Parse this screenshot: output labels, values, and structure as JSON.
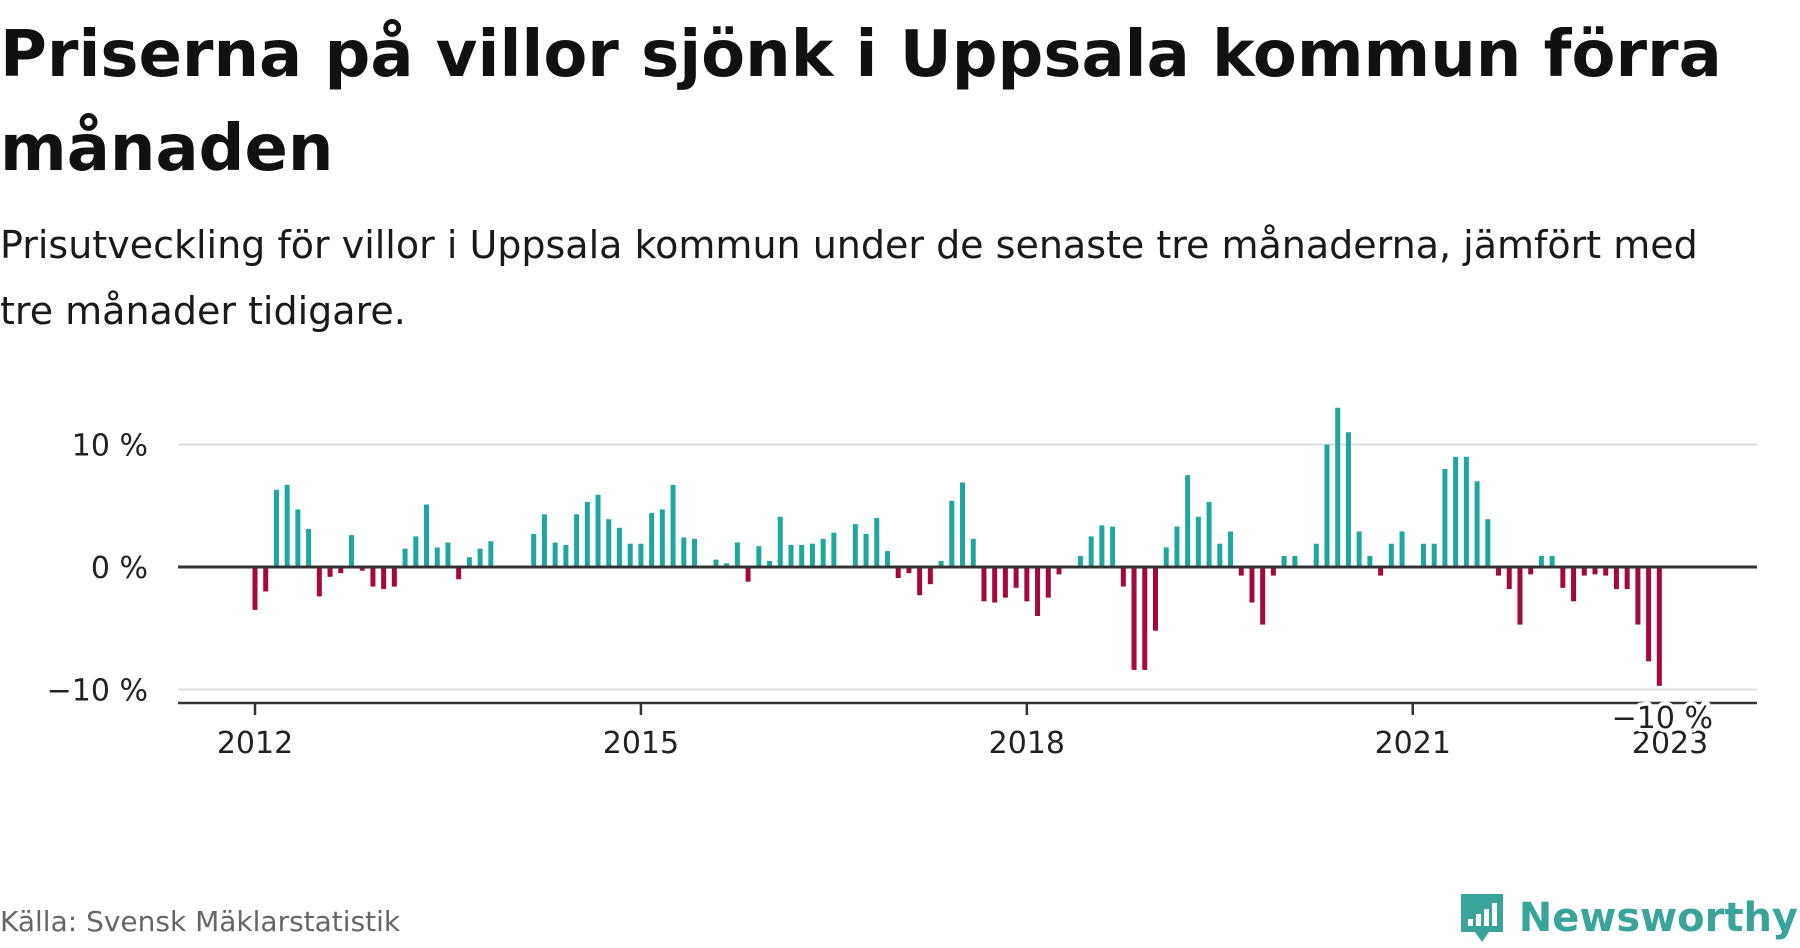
{
  "title": "Priserna på villor sjönk i Uppsala kommun förra månaden",
  "subtitle": "Prisutveckling för villor i Uppsala kommun under de senaste tre månaderna, jämfört med tre månader tidigare.",
  "source": "Källa: Svensk Mäklarstatistik",
  "brand": {
    "name": "Newsworthy",
    "icon": "newsworthy-logo-icon",
    "color": "#3aa39a"
  },
  "colors": {
    "positive": "#1fa79d",
    "negative": "#a5073e",
    "axis": "#333333",
    "grid": "#dddddd"
  },
  "chart_data": {
    "type": "bar",
    "title": "",
    "xlabel": "",
    "ylabel": "",
    "ylim": [
      -11.5,
      13.5
    ],
    "y_ticks": [
      {
        "value": 10,
        "label": "10 %"
      },
      {
        "value": 0,
        "label": "0 %"
      },
      {
        "value": -10,
        "label": "−10 %"
      }
    ],
    "x_ticks": [
      {
        "value": "2012-01",
        "label": "2012"
      },
      {
        "value": "2015-01",
        "label": "2015"
      },
      {
        "value": "2018-01",
        "label": "2018"
      },
      {
        "value": "2021-01",
        "label": "2021"
      },
      {
        "value": "2023-01",
        "label": "2023"
      }
    ],
    "grid": true,
    "last_value_label": "−10 %",
    "series": [
      {
        "x_start": "2012-01",
        "values": [
          -3.5,
          -2,
          6.3,
          6.7,
          4.7,
          3.1,
          -2.4,
          -0.8,
          -0.5,
          2.6,
          -0.3,
          -1.6,
          -1.8,
          -1.6,
          1.5,
          2.5,
          5.1,
          1.6,
          2,
          -1,
          0.8,
          1.5,
          2.1,
          null,
          null,
          null,
          2.7,
          4.3,
          2,
          1.8,
          4.3,
          5.3,
          5.9,
          3.9,
          3.2,
          1.9,
          1.9,
          4.4,
          4.7,
          6.7,
          2.4,
          2.3,
          null,
          0.6,
          0.3,
          2,
          -1.2,
          1.7,
          0.5,
          4.1,
          1.8,
          1.8,
          1.9,
          2.3,
          2.8,
          null,
          3.5,
          2.7,
          4,
          1.3,
          -0.9,
          -0.5,
          -2.3,
          -1.4,
          0.5,
          5.4,
          6.9,
          2.3,
          -2.8,
          -2.9,
          -2.5,
          -1.7,
          -2.8,
          -4,
          -2.5,
          -0.6,
          null,
          0.9,
          2.5,
          3.4,
          3.3,
          -1.6,
          -8.4,
          -8.4,
          -5.2,
          1.6,
          3.3,
          7.5,
          4.1,
          5.3,
          1.9,
          2.9,
          -0.7,
          -2.9,
          -4.7,
          -0.7,
          0.9,
          0.9,
          null,
          1.9,
          10,
          13,
          11,
          2.9,
          0.9,
          -0.7,
          1.9,
          2.9,
          null,
          1.9,
          1.9,
          8,
          9,
          9,
          7,
          3.9,
          -0.7,
          -1.8,
          -4.7,
          -0.6,
          0.9,
          0.9,
          -1.7,
          -2.8,
          -0.7,
          -0.6,
          -0.7,
          -1.8,
          -1.8,
          -4.7,
          -7.7,
          -9.7
        ]
      }
    ]
  }
}
